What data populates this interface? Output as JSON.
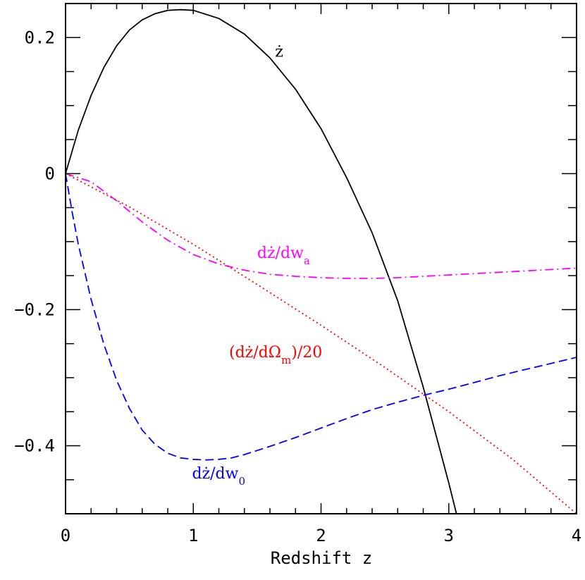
{
  "chart_data": {
    "type": "line",
    "title": "",
    "xlabel": "Redshift z",
    "ylabel": "",
    "xlim": [
      0,
      4
    ],
    "ylim": [
      -0.5,
      0.25
    ],
    "xticks": [
      0,
      1,
      2,
      3,
      4
    ],
    "xtick_labels": [
      "0",
      "1",
      "2",
      "3",
      "4"
    ],
    "xminor_step": 0.2,
    "yticks": [
      0.2,
      0,
      -0.2,
      -0.4
    ],
    "ytick_labels": [
      "0.2",
      "0",
      "−0.2",
      "−0.4"
    ],
    "yminor_step": 0.05,
    "grid": false,
    "legend": "none",
    "series": [
      {
        "name": "ż",
        "label": "ż",
        "color": "#000000",
        "dash": "solid",
        "x": [
          0,
          0.1,
          0.2,
          0.3,
          0.4,
          0.5,
          0.6,
          0.7,
          0.8,
          0.9,
          1.0,
          1.2,
          1.4,
          1.6,
          1.8,
          2.0,
          2.2,
          2.4,
          2.6,
          2.8,
          3.0,
          3.06
        ],
        "y": [
          0,
          0.064,
          0.115,
          0.156,
          0.188,
          0.211,
          0.226,
          0.235,
          0.24,
          0.241,
          0.24,
          0.228,
          0.205,
          0.17,
          0.124,
          0.066,
          -0.006,
          -0.087,
          -0.187,
          -0.314,
          -0.455,
          -0.5
        ]
      },
      {
        "name": "dż/dw_a",
        "label": "dż/dw",
        "label_sub": "a",
        "color": "#ff00ff",
        "dash": "dashdot",
        "x": [
          0,
          0.2,
          0.4,
          0.6,
          0.8,
          1.0,
          1.2,
          1.4,
          1.6,
          1.8,
          2.0,
          2.2,
          2.4,
          2.6,
          2.8,
          3.0,
          3.2,
          3.4,
          3.6,
          3.8,
          4.0
        ],
        "y": [
          0,
          -0.012,
          -0.04,
          -0.071,
          -0.098,
          -0.119,
          -0.133,
          -0.142,
          -0.148,
          -0.151,
          -0.153,
          -0.154,
          -0.154,
          -0.153,
          -0.151,
          -0.149,
          -0.147,
          -0.145,
          -0.143,
          -0.141,
          -0.139
        ]
      },
      {
        "name": "(dż/dΩ_m)/20",
        "label": "(dż/dΩ",
        "label_sub": "m",
        "label_after": ")/20",
        "color": "#ff0000",
        "dash": "dotted",
        "x": [
          0,
          0.5,
          1.0,
          1.5,
          2.0,
          2.5,
          3.0,
          3.5,
          4.0
        ],
        "y": [
          0,
          -0.049,
          -0.104,
          -0.163,
          -0.223,
          -0.285,
          -0.35,
          -0.42,
          -0.5
        ]
      },
      {
        "name": "dż/dw_0",
        "label": "dż/dw",
        "label_sub": "0",
        "color": "#0000ff",
        "dash": "dashed",
        "x": [
          0,
          0.05,
          0.1,
          0.2,
          0.3,
          0.4,
          0.5,
          0.6,
          0.7,
          0.8,
          0.9,
          1.0,
          1.1,
          1.2,
          1.3,
          1.4,
          1.6,
          1.8,
          2.0,
          2.2,
          2.4,
          2.6,
          2.8,
          3.0,
          3.2,
          3.4,
          3.6,
          3.8,
          4.0
        ],
        "y": [
          0,
          -0.055,
          -0.104,
          -0.185,
          -0.251,
          -0.304,
          -0.345,
          -0.377,
          -0.398,
          -0.411,
          -0.418,
          -0.42,
          -0.421,
          -0.42,
          -0.418,
          -0.413,
          -0.401,
          -0.388,
          -0.374,
          -0.36,
          -0.347,
          -0.336,
          -0.326,
          -0.317,
          -0.307,
          -0.297,
          -0.288,
          -0.279,
          -0.27
        ]
      }
    ],
    "annotations": [
      {
        "series": 0,
        "x": 1.64,
        "y": 0.172
      },
      {
        "series": 1,
        "x": 1.5,
        "y": -0.124
      },
      {
        "series": 2,
        "x": 1.28,
        "y": -0.27
      },
      {
        "series": 3,
        "x": 0.99,
        "y": -0.448
      }
    ]
  }
}
